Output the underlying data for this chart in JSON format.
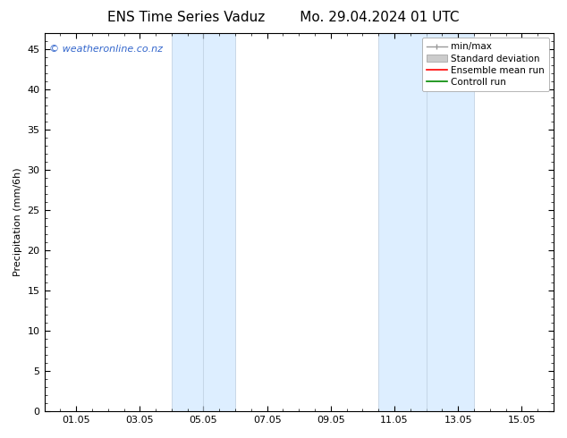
{
  "title_left": "ENS Time Series Vaduz",
  "title_right": "Mo. 29.04.2024 01 UTC",
  "ylabel": "Precipitation (mm/6h)",
  "watermark": "© weatheronline.co.nz",
  "watermark_color": "#3366cc",
  "xlim_left": 0.0,
  "xlim_right": 16.0,
  "ylim_bottom": 0,
  "ylim_top": 47,
  "yticks": [
    0,
    5,
    10,
    15,
    20,
    25,
    30,
    35,
    40,
    45
  ],
  "xtick_positions": [
    1,
    3,
    5,
    7,
    9,
    11,
    13,
    15
  ],
  "xtick_labels": [
    "01.05",
    "03.05",
    "05.05",
    "07.05",
    "09.05",
    "11.05",
    "13.05",
    "15.05"
  ],
  "shaded_regions": [
    {
      "x_start": 4.0,
      "x_end": 6.0
    },
    {
      "x_start": 10.5,
      "x_end": 13.5
    }
  ],
  "shaded_color": "#ddeeff",
  "shaded_edge_color": "#bbccdd",
  "background_color": "#ffffff",
  "plot_background_color": "#ffffff",
  "title_fontsize": 11,
  "tick_fontsize": 8,
  "ylabel_fontsize": 8,
  "watermark_fontsize": 8,
  "legend_fontsize": 7.5
}
